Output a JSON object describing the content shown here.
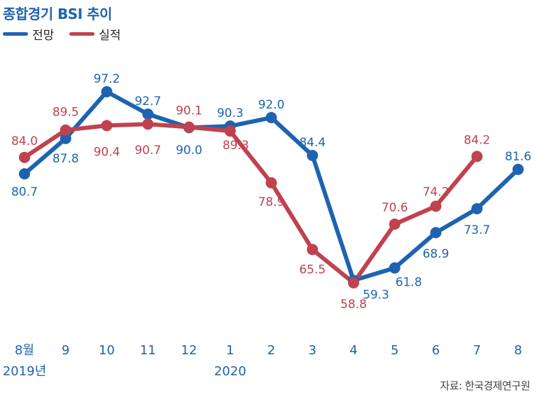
{
  "title": "종합경기 BSI 추이",
  "source": "자료: 한국경제연구원",
  "legend": [
    {
      "label": "전망",
      "color": "#1e63b0"
    },
    {
      "label": "실적",
      "color": "#c0424f"
    }
  ],
  "colors": {
    "forecast": "#1e63b0",
    "actual": "#c0424f"
  },
  "chart_data": {
    "type": "line",
    "title": "종합경기 BSI 추이",
    "x_tick_labels": [
      "8월",
      "9",
      "10",
      "11",
      "12",
      "1",
      "2",
      "3",
      "4",
      "5",
      "6",
      "7",
      "8"
    ],
    "year_labels": [
      {
        "index": 0,
        "label": "2019년"
      },
      {
        "index": 5,
        "label": "2020"
      }
    ],
    "ylim": [
      50,
      100
    ],
    "grid": false,
    "legend_position": "top-left",
    "series": [
      {
        "name": "전망",
        "color": "#1e63b0",
        "values": [
          80.7,
          87.8,
          97.2,
          92.7,
          90.0,
          90.3,
          92.0,
          84.4,
          59.3,
          61.8,
          68.9,
          73.7,
          81.6
        ]
      },
      {
        "name": "실적",
        "color": "#c0424f",
        "values": [
          84.0,
          89.5,
          90.4,
          90.7,
          90.1,
          89.3,
          78.9,
          65.5,
          58.8,
          70.6,
          74.2,
          84.2,
          null
        ]
      }
    ]
  }
}
